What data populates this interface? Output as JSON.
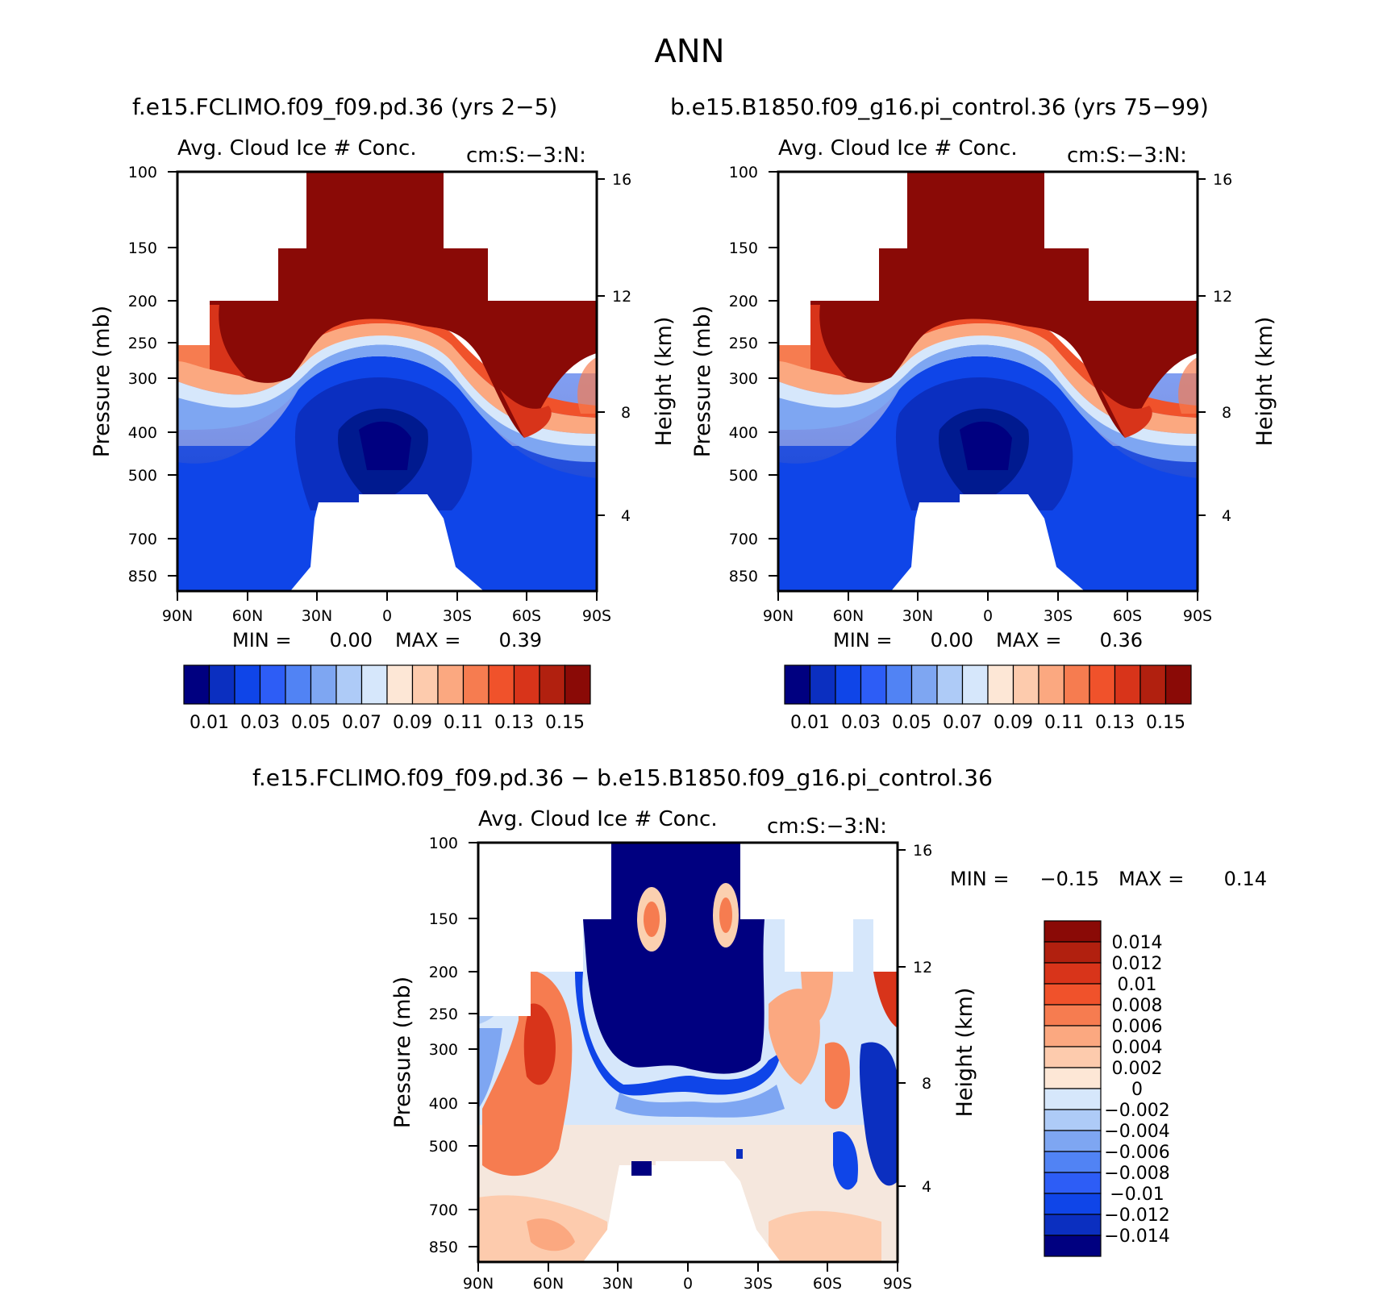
{
  "figure": {
    "title": "ANN"
  },
  "chart_data": [
    {
      "type": "heatmap",
      "case_title": "f.e15.FCLIMO.f09_f09.pd.36 (yrs 2-5)",
      "title": "Avg. Cloud Ice # Conc.",
      "units": "cm:S:-3:N:",
      "xlabel": "",
      "ylabel": "Pressure (mb)",
      "y2label": "Height (km)",
      "xticks": [
        "90N",
        "60N",
        "30N",
        "0",
        "30S",
        "60S",
        "90S"
      ],
      "yticks": [
        "100",
        "150",
        "200",
        "250",
        "300",
        "400",
        "500",
        "700",
        "850"
      ],
      "y2ticks": [
        "16",
        "12",
        "8",
        "4"
      ],
      "xlim": [
        90,
        -90
      ],
      "ylim": [
        100,
        1000
      ],
      "min_label": "MIN =",
      "min_value": "0.00",
      "max_label": "MAX =",
      "max_value": "0.39",
      "colorbar_labels": [
        "0.01",
        "0.03",
        "0.05",
        "0.07",
        "0.09",
        "0.11",
        "0.13",
        "0.15"
      ],
      "colorbar_colors": [
        "#000080",
        "#0b2fc0",
        "#0f45e8",
        "#2d5df6",
        "#5183f4",
        "#7ea6f2",
        "#aecbf7",
        "#d6e7fb",
        "#fde7d6",
        "#fdcbad",
        "#fba880",
        "#f67c50",
        "#f0522b",
        "#d8341a",
        "#b1200f",
        "#8a0a06"
      ]
    },
    {
      "type": "heatmap",
      "case_title": "b.e15.B1850.f09_g16.pi_control.36 (yrs 75-99)",
      "title": "Avg. Cloud Ice # Conc.",
      "units": "cm:S:-3:N:",
      "xlabel": "",
      "ylabel": "Pressure (mb)",
      "y2label": "Height (km)",
      "xticks": [
        "90N",
        "60N",
        "30N",
        "0",
        "30S",
        "60S",
        "90S"
      ],
      "yticks": [
        "100",
        "150",
        "200",
        "250",
        "300",
        "400",
        "500",
        "700",
        "850"
      ],
      "y2ticks": [
        "16",
        "12",
        "8",
        "4"
      ],
      "xlim": [
        90,
        -90
      ],
      "ylim": [
        100,
        1000
      ],
      "min_label": "MIN =",
      "min_value": "0.00",
      "max_label": "MAX =",
      "max_value": "0.36",
      "colorbar_labels": [
        "0.01",
        "0.03",
        "0.05",
        "0.07",
        "0.09",
        "0.11",
        "0.13",
        "0.15"
      ],
      "colorbar_colors": [
        "#000080",
        "#0b2fc0",
        "#0f45e8",
        "#2d5df6",
        "#5183f4",
        "#7ea6f2",
        "#aecbf7",
        "#d6e7fb",
        "#fde7d6",
        "#fdcbad",
        "#fba880",
        "#f67c50",
        "#f0522b",
        "#d8341a",
        "#b1200f",
        "#8a0a06"
      ]
    },
    {
      "type": "heatmap",
      "case_title": "f.e15.FCLIMO.f09_f09.pd.36 - b.e15.B1850.f09_g16.pi_control.36",
      "title": "Avg. Cloud Ice # Conc.",
      "units": "cm:S:-3:N:",
      "xlabel": "",
      "ylabel": "Pressure (mb)",
      "y2label": "Height (km)",
      "xticks": [
        "90N",
        "60N",
        "30N",
        "0",
        "30S",
        "60S",
        "90S"
      ],
      "yticks": [
        "100",
        "150",
        "200",
        "250",
        "300",
        "400",
        "500",
        "700",
        "850"
      ],
      "y2ticks": [
        "16",
        "12",
        "8",
        "4"
      ],
      "xlim": [
        90,
        -90
      ],
      "ylim": [
        100,
        1000
      ],
      "min_label": "MIN =",
      "min_value": "-0.15",
      "max_label": "MAX =",
      "max_value": "0.14",
      "colorbar_labels": [
        "0.014",
        "0.012",
        "0.01",
        "0.008",
        "0.006",
        "0.004",
        "0.002",
        "0",
        "-0.002",
        "-0.004",
        "-0.006",
        "-0.008",
        "-0.01",
        "-0.012",
        "-0.014"
      ],
      "colorbar_colors": [
        "#8a0a06",
        "#b1200f",
        "#d8341a",
        "#f0522b",
        "#f67c50",
        "#fba880",
        "#fdcbad",
        "#fde7d6",
        "#d6e7fb",
        "#aecbf7",
        "#7ea6f2",
        "#5183f4",
        "#2d5df6",
        "#0f45e8",
        "#0b2fc0",
        "#000080"
      ]
    }
  ]
}
